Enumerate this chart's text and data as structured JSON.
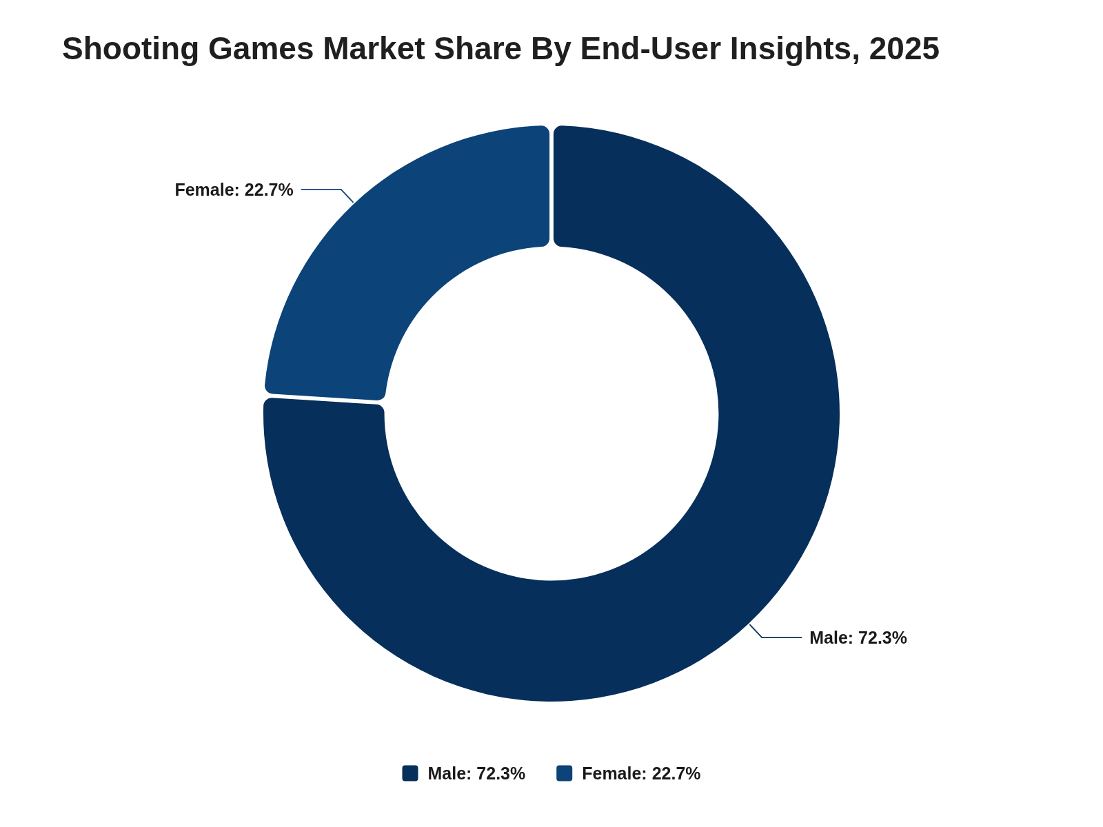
{
  "chart_data": {
    "type": "donut",
    "title": "Shooting Games Market Share By End-User Insights, 2025",
    "categories": [
      "Male",
      "Female"
    ],
    "values": [
      72.3,
      22.7
    ],
    "value_labels": [
      "72.3%",
      "22.7%"
    ],
    "colors": [
      "#062f5b",
      "#0c4378"
    ],
    "legend": "bottom"
  }
}
